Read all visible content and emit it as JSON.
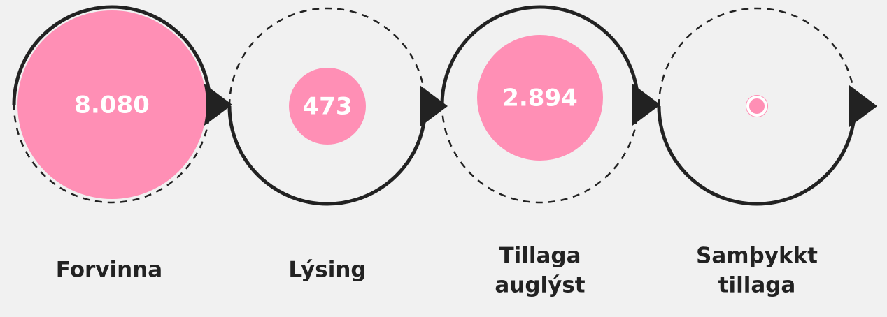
{
  "stages": [
    {
      "value": "8.080",
      "label": [
        "Forvinna"
      ]
    },
    {
      "value": "473",
      "label": [
        "Lýsing"
      ]
    },
    {
      "value": "2.894",
      "label": [
        "Tillaga",
        "auglýst"
      ]
    },
    {
      "value": "0",
      "label": [
        "Samþykkt",
        "tillaga"
      ]
    }
  ]
}
